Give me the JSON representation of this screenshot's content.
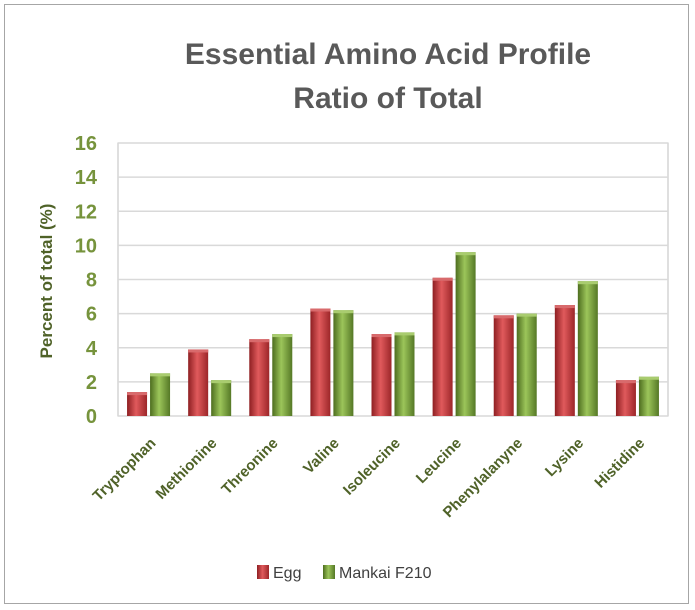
{
  "chart_data": {
    "type": "bar",
    "title": "Essential Amino Acid Profile",
    "subtitle": "Ratio of Total",
    "xlabel": "",
    "ylabel": "Percent of total (%)",
    "ylim": [
      0,
      16
    ],
    "yticks": [
      "0",
      "2",
      "4",
      "6",
      "8",
      "10",
      "12",
      "14",
      "16"
    ],
    "grid": true,
    "legend_position": "bottom",
    "categories": [
      "Tryptophan",
      "Methionine",
      "Threonine",
      "Valine",
      "Isoleucine",
      "Leucine",
      "Phenylalanyne",
      "Lysine",
      "Histidine"
    ],
    "series": [
      {
        "name": "Egg",
        "color": "#c0393b",
        "values": [
          1.4,
          3.9,
          4.5,
          6.3,
          4.8,
          8.1,
          5.9,
          6.5,
          2.1
        ]
      },
      {
        "name": "Mankai F210",
        "color": "#77a03a",
        "values": [
          2.5,
          2.1,
          4.8,
          6.2,
          4.9,
          9.6,
          6.0,
          7.9,
          2.3
        ]
      }
    ]
  }
}
